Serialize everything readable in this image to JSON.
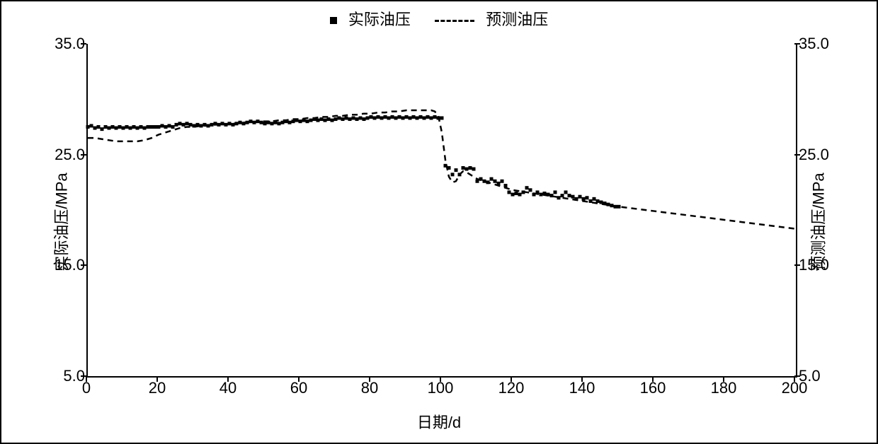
{
  "chart": {
    "type": "line+scatter",
    "background_color": "#ffffff",
    "border_color": "#000000",
    "legend": {
      "position": "top-center",
      "items": [
        {
          "label": "实际油压",
          "marker": "square",
          "color": "#000000"
        },
        {
          "label": "预测油压",
          "marker": "dash",
          "color": "#000000"
        }
      ],
      "fontsize": 22
    },
    "x_axis": {
      "label": "日期/d",
      "label_fontsize": 22,
      "range": [
        0,
        200
      ],
      "ticks": [
        0,
        20,
        40,
        60,
        80,
        100,
        120,
        140,
        160,
        180,
        200
      ],
      "tick_fontsize": 22
    },
    "y_left": {
      "label": "实际油压/MPa",
      "label_fontsize": 22,
      "range": [
        5.0,
        35.0
      ],
      "ticks": [
        5.0,
        15.0,
        25.0,
        35.0
      ],
      "tick_labels": [
        "5.0",
        "15.0",
        "25.0",
        "35.0"
      ],
      "tick_fontsize": 22
    },
    "y_right": {
      "label": "预测油压/MPa",
      "label_fontsize": 22,
      "range": [
        5.0,
        35.0
      ],
      "ticks": [
        5.0,
        15.0,
        25.0,
        35.0
      ],
      "tick_labels": [
        "5.0",
        "15.0",
        "25.0",
        "35.0"
      ],
      "tick_fontsize": 22
    },
    "series_actual": {
      "name": "实际油压",
      "color": "#000000",
      "marker": "square",
      "marker_size": 5,
      "data": [
        [
          0,
          27.5
        ],
        [
          1,
          27.6
        ],
        [
          2,
          27.4
        ],
        [
          3,
          27.5
        ],
        [
          4,
          27.3
        ],
        [
          5,
          27.5
        ],
        [
          6,
          27.4
        ],
        [
          7,
          27.5
        ],
        [
          8,
          27.4
        ],
        [
          9,
          27.5
        ],
        [
          10,
          27.4
        ],
        [
          11,
          27.5
        ],
        [
          12,
          27.4
        ],
        [
          13,
          27.5
        ],
        [
          14,
          27.4
        ],
        [
          15,
          27.5
        ],
        [
          16,
          27.4
        ],
        [
          17,
          27.5
        ],
        [
          18,
          27.5
        ],
        [
          19,
          27.5
        ],
        [
          20,
          27.5
        ],
        [
          21,
          27.6
        ],
        [
          22,
          27.5
        ],
        [
          23,
          27.6
        ],
        [
          24,
          27.5
        ],
        [
          25,
          27.7
        ],
        [
          26,
          27.8
        ],
        [
          27,
          27.7
        ],
        [
          28,
          27.8
        ],
        [
          29,
          27.7
        ],
        [
          30,
          27.6
        ],
        [
          31,
          27.7
        ],
        [
          32,
          27.6
        ],
        [
          33,
          27.7
        ],
        [
          34,
          27.6
        ],
        [
          35,
          27.7
        ],
        [
          36,
          27.8
        ],
        [
          37,
          27.7
        ],
        [
          38,
          27.8
        ],
        [
          39,
          27.7
        ],
        [
          40,
          27.8
        ],
        [
          41,
          27.7
        ],
        [
          42,
          27.8
        ],
        [
          43,
          27.9
        ],
        [
          44,
          27.8
        ],
        [
          45,
          27.9
        ],
        [
          46,
          28.0
        ],
        [
          47,
          27.9
        ],
        [
          48,
          28.0
        ],
        [
          49,
          27.9
        ],
        [
          50,
          27.8
        ],
        [
          51,
          27.9
        ],
        [
          52,
          27.8
        ],
        [
          53,
          27.9
        ],
        [
          54,
          27.8
        ],
        [
          55,
          27.9
        ],
        [
          56,
          28.0
        ],
        [
          57,
          27.9
        ],
        [
          58,
          28.0
        ],
        [
          59,
          28.1
        ],
        [
          60,
          28.0
        ],
        [
          61,
          28.1
        ],
        [
          62,
          28.0
        ],
        [
          63,
          28.1
        ],
        [
          64,
          28.2
        ],
        [
          65,
          28.1
        ],
        [
          66,
          28.2
        ],
        [
          67,
          28.1
        ],
        [
          68,
          28.2
        ],
        [
          69,
          28.1
        ],
        [
          70,
          28.2
        ],
        [
          71,
          28.3
        ],
        [
          72,
          28.2
        ],
        [
          73,
          28.3
        ],
        [
          74,
          28.2
        ],
        [
          75,
          28.3
        ],
        [
          76,
          28.2
        ],
        [
          77,
          28.3
        ],
        [
          78,
          28.2
        ],
        [
          79,
          28.3
        ],
        [
          80,
          28.4
        ],
        [
          81,
          28.3
        ],
        [
          82,
          28.4
        ],
        [
          83,
          28.3
        ],
        [
          84,
          28.4
        ],
        [
          85,
          28.3
        ],
        [
          86,
          28.4
        ],
        [
          87,
          28.3
        ],
        [
          88,
          28.4
        ],
        [
          89,
          28.3
        ],
        [
          90,
          28.4
        ],
        [
          91,
          28.3
        ],
        [
          92,
          28.4
        ],
        [
          93,
          28.3
        ],
        [
          94,
          28.4
        ],
        [
          95,
          28.3
        ],
        [
          96,
          28.4
        ],
        [
          97,
          28.3
        ],
        [
          98,
          28.4
        ],
        [
          99,
          28.3
        ],
        [
          100,
          28.3
        ],
        [
          101,
          24.0
        ],
        [
          102,
          23.8
        ],
        [
          103,
          23.2
        ],
        [
          104,
          23.6
        ],
        [
          105,
          23.2
        ],
        [
          106,
          23.8
        ],
        [
          107,
          23.7
        ],
        [
          108,
          23.8
        ],
        [
          109,
          23.7
        ],
        [
          110,
          22.6
        ],
        [
          111,
          22.8
        ],
        [
          112,
          22.6
        ],
        [
          113,
          22.5
        ],
        [
          114,
          22.8
        ],
        [
          115,
          22.6
        ],
        [
          116,
          22.4
        ],
        [
          117,
          22.6
        ],
        [
          118,
          22.2
        ],
        [
          119,
          21.6
        ],
        [
          120,
          21.4
        ],
        [
          121,
          21.5
        ],
        [
          122,
          21.4
        ],
        [
          123,
          21.6
        ],
        [
          124,
          22.0
        ],
        [
          125,
          21.8
        ],
        [
          126,
          21.4
        ],
        [
          127,
          21.6
        ],
        [
          128,
          21.4
        ],
        [
          129,
          21.5
        ],
        [
          130,
          21.4
        ],
        [
          131,
          21.3
        ],
        [
          132,
          21.6
        ],
        [
          133,
          21.1
        ],
        [
          134,
          21.3
        ],
        [
          135,
          21.6
        ],
        [
          136,
          21.3
        ],
        [
          137,
          21.2
        ],
        [
          138,
          21.0
        ],
        [
          139,
          21.2
        ],
        [
          140,
          21.0
        ],
        [
          141,
          21.1
        ],
        [
          142,
          20.8
        ],
        [
          143,
          21.0
        ],
        [
          144,
          20.8
        ],
        [
          145,
          20.7
        ],
        [
          146,
          20.6
        ],
        [
          147,
          20.5
        ],
        [
          148,
          20.4
        ],
        [
          149,
          20.3
        ],
        [
          150,
          20.3
        ]
      ]
    },
    "series_predicted": {
      "name": "预测油压",
      "color": "#000000",
      "line_style": "dash",
      "line_width": 2.5,
      "dash_pattern": "8 6",
      "data": [
        [
          0,
          26.5
        ],
        [
          2,
          26.5
        ],
        [
          4,
          26.4
        ],
        [
          6,
          26.3
        ],
        [
          8,
          26.2
        ],
        [
          10,
          26.2
        ],
        [
          12,
          26.2
        ],
        [
          14,
          26.2
        ],
        [
          16,
          26.3
        ],
        [
          18,
          26.5
        ],
        [
          20,
          26.8
        ],
        [
          22,
          27.0
        ],
        [
          24,
          27.2
        ],
        [
          26,
          27.4
        ],
        [
          28,
          27.5
        ],
        [
          30,
          27.5
        ],
        [
          32,
          27.6
        ],
        [
          34,
          27.6
        ],
        [
          36,
          27.7
        ],
        [
          38,
          27.7
        ],
        [
          40,
          27.8
        ],
        [
          42,
          27.8
        ],
        [
          44,
          27.9
        ],
        [
          46,
          27.9
        ],
        [
          48,
          28.0
        ],
        [
          50,
          28.0
        ],
        [
          52,
          28.0
        ],
        [
          54,
          28.1
        ],
        [
          56,
          28.1
        ],
        [
          58,
          28.2
        ],
        [
          60,
          28.2
        ],
        [
          62,
          28.3
        ],
        [
          64,
          28.3
        ],
        [
          66,
          28.4
        ],
        [
          68,
          28.4
        ],
        [
          70,
          28.5
        ],
        [
          72,
          28.5
        ],
        [
          74,
          28.6
        ],
        [
          76,
          28.6
        ],
        [
          78,
          28.7
        ],
        [
          80,
          28.7
        ],
        [
          82,
          28.8
        ],
        [
          84,
          28.8
        ],
        [
          86,
          28.9
        ],
        [
          88,
          28.9
        ],
        [
          90,
          29.0
        ],
        [
          92,
          29.0
        ],
        [
          94,
          29.0
        ],
        [
          96,
          29.0
        ],
        [
          97,
          29.0
        ],
        [
          98,
          28.9
        ],
        [
          99,
          28.5
        ],
        [
          100,
          27.0
        ],
        [
          101,
          24.5
        ],
        [
          102,
          23.0
        ],
        [
          103,
          22.5
        ],
        [
          104,
          22.6
        ],
        [
          105,
          23.2
        ],
        [
          106,
          23.5
        ],
        [
          107,
          23.4
        ],
        [
          108,
          23.2
        ],
        [
          110,
          22.8
        ],
        [
          112,
          22.6
        ],
        [
          114,
          22.4
        ],
        [
          116,
          22.2
        ],
        [
          118,
          22.0
        ],
        [
          120,
          21.8
        ],
        [
          122,
          21.7
        ],
        [
          124,
          21.6
        ],
        [
          126,
          21.5
        ],
        [
          128,
          21.4
        ],
        [
          130,
          21.3
        ],
        [
          132,
          21.2
        ],
        [
          134,
          21.1
        ],
        [
          136,
          21.0
        ],
        [
          138,
          20.9
        ],
        [
          140,
          20.8
        ],
        [
          142,
          20.7
        ],
        [
          144,
          20.6
        ],
        [
          146,
          20.5
        ],
        [
          148,
          20.4
        ],
        [
          150,
          20.3
        ],
        [
          155,
          20.1
        ],
        [
          160,
          19.9
        ],
        [
          165,
          19.7
        ],
        [
          170,
          19.5
        ],
        [
          175,
          19.3
        ],
        [
          180,
          19.1
        ],
        [
          185,
          18.9
        ],
        [
          190,
          18.7
        ],
        [
          195,
          18.5
        ],
        [
          200,
          18.3
        ]
      ]
    }
  }
}
